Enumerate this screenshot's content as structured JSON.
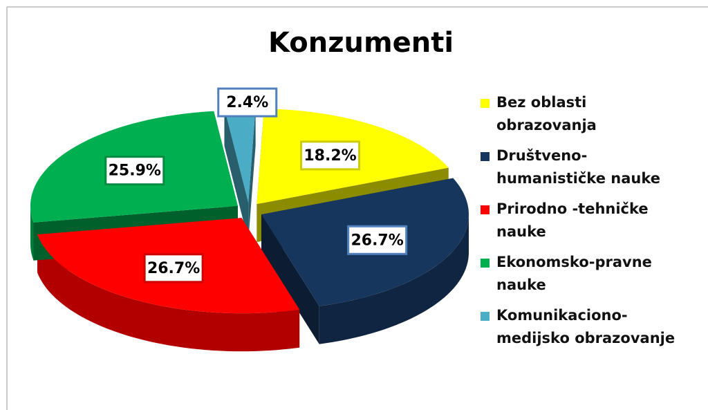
{
  "chart_data": {
    "type": "pie",
    "title": "Konzumenti",
    "categories": [
      "Bez oblasti obrazovanja",
      "Društveno-humanističke nauke",
      "Prirodno -tehničke nauke",
      "Ekonomsko-pravne nauke",
      "Komunikaciono-medijsko obrazovanje"
    ],
    "values": [
      18.2,
      26.7,
      26.7,
      25.9,
      2.4
    ],
    "value_labels": [
      "18.2%",
      "26.7%",
      "26.7%",
      "25.9%",
      "2.4%"
    ],
    "colors": [
      "#ffff00",
      "#17365d",
      "#ff0000",
      "#00b050",
      "#4bacc6"
    ],
    "legend": "right"
  }
}
